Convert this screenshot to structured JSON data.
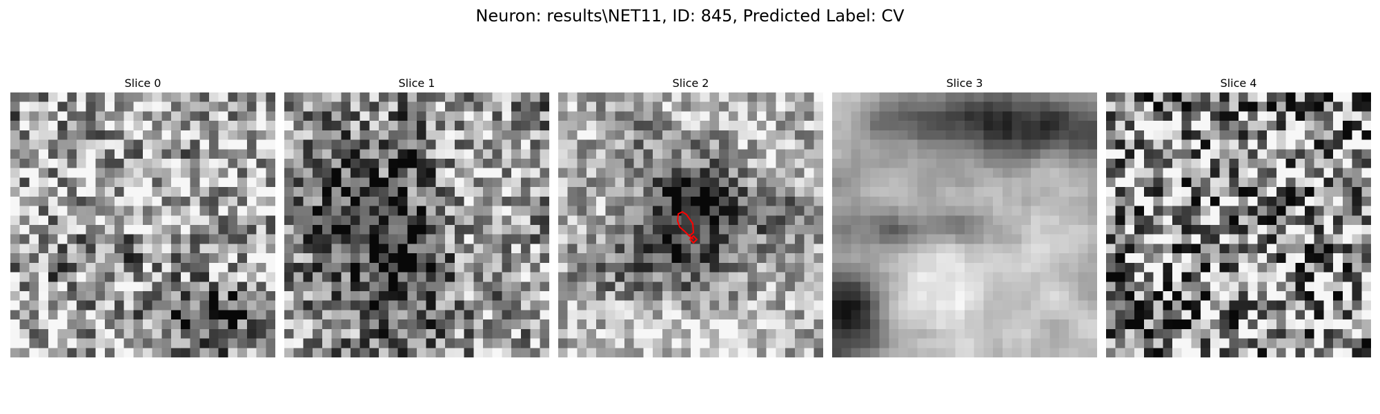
{
  "figure": {
    "title": "Neuron: results\\NET11, ID: 845, Predicted Label: CV"
  },
  "slices": [
    {
      "title": "Slice 0",
      "texture": "fine-noise",
      "dark_band": "bottom-right",
      "annotated": false
    },
    {
      "title": "Slice 1",
      "texture": "dark-vertical-band",
      "dark_band": "center-column",
      "annotated": false
    },
    {
      "title": "Slice 2",
      "texture": "dark-center-blob",
      "dark_band": "center",
      "annotated": true
    },
    {
      "title": "Slice 3",
      "texture": "bright-round-cell",
      "dark_band": "top-and-bottom-left",
      "annotated": false
    },
    {
      "title": "Slice 4",
      "texture": "fine-noise",
      "dark_band": "bottom-left",
      "annotated": false
    }
  ],
  "colors": {
    "contour": "#ff0000",
    "background": "#ffffff"
  }
}
